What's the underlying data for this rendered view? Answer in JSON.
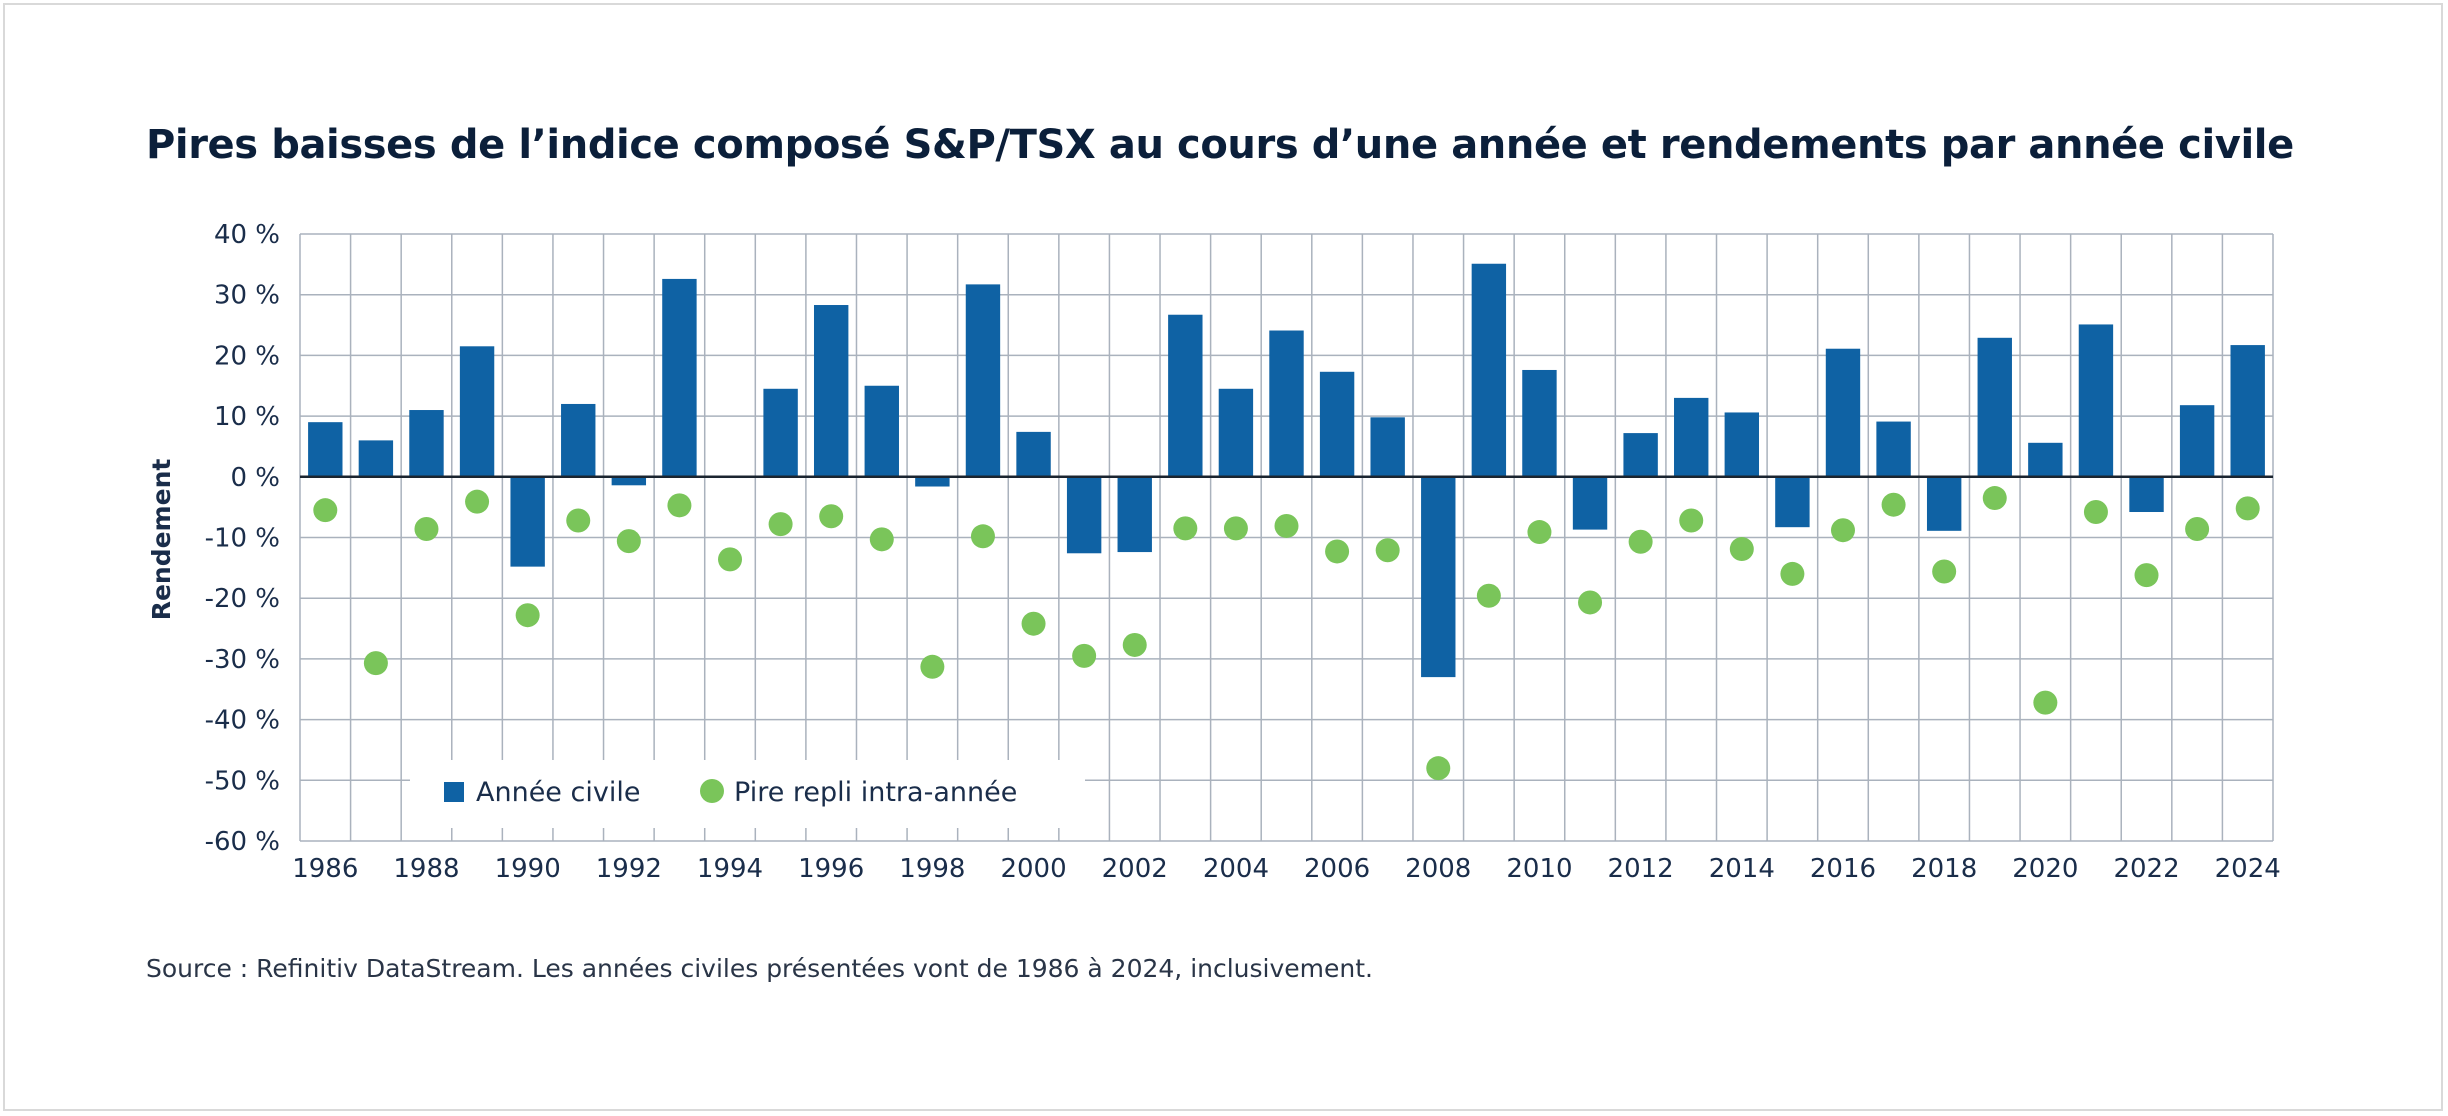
{
  "title": "Pires baisses de l’indice composé S&P/TSX au cours d’une année et rendements par année civile",
  "source": "Source : Refinitiv DataStream. Les années civiles présentées vont de 1986 à 2024, inclusivement.",
  "colors": {
    "bar": "#0f62a4",
    "dot": "#7ac55a",
    "grid": "#aab2bd",
    "text": "#1a2d4a"
  },
  "chart_data": {
    "type": "bar",
    "title": "Pires baisses de l’indice composé S&P/TSX au cours d’une année et rendements par année civile",
    "ylabel": "Rendement",
    "xlabel": "",
    "ylim": [
      -60,
      40
    ],
    "yticks": [
      40,
      30,
      20,
      10,
      0,
      -10,
      -20,
      -30,
      -40,
      -50,
      -60
    ],
    "ytick_labels": [
      "40 %",
      "30 %",
      "20 %",
      "10 %",
      "0 %",
      "-10 %",
      "-20 %",
      "-30 %",
      "-40 %",
      "-50 %",
      "-60 %"
    ],
    "xtick_labels": [
      "1986",
      "1988",
      "1990",
      "1992",
      "1994",
      "1996",
      "1998",
      "2000",
      "2002",
      "2004",
      "2006",
      "2008",
      "2010",
      "2012",
      "2014",
      "2016",
      "2018",
      "2020",
      "2022",
      "2024"
    ],
    "grid": true,
    "legend_position": "bottom-left",
    "categories": [
      "1986",
      "1987",
      "1988",
      "1989",
      "1990",
      "1991",
      "1992",
      "1993",
      "1994",
      "1995",
      "1996",
      "1997",
      "1998",
      "1999",
      "2000",
      "2001",
      "2002",
      "2003",
      "2004",
      "2005",
      "2006",
      "2007",
      "2008",
      "2009",
      "2010",
      "2011",
      "2012",
      "2013",
      "2014",
      "2015",
      "2016",
      "2017",
      "2018",
      "2019",
      "2020",
      "2021",
      "2022",
      "2023",
      "2024"
    ],
    "series": [
      {
        "name": "Année civile",
        "type": "bar",
        "values": [
          9,
          6,
          11,
          21.5,
          -14.8,
          12,
          -1.4,
          32.6,
          -0.2,
          14.5,
          28.3,
          15,
          -1.6,
          31.7,
          7.4,
          -12.6,
          -12.4,
          26.7,
          14.5,
          24.1,
          17.3,
          9.8,
          -33,
          35.1,
          17.6,
          -8.7,
          7.2,
          13,
          10.6,
          -8.3,
          21.1,
          9.1,
          -8.9,
          22.9,
          5.6,
          25.1,
          -5.8,
          11.8,
          21.7
        ]
      },
      {
        "name": "Pire repli intra-année",
        "type": "scatter",
        "values": [
          -5.5,
          -30.7,
          -8.6,
          -4.1,
          -22.8,
          -7.2,
          -10.6,
          -4.7,
          -13.6,
          -7.8,
          -6.5,
          -10.3,
          -31.3,
          -9.8,
          -24.2,
          -29.5,
          -27.7,
          -8.5,
          -8.5,
          -8.1,
          -12.3,
          -12.1,
          -48,
          -19.6,
          -9.1,
          -20.7,
          -10.7,
          -7.2,
          -11.9,
          -16,
          -8.8,
          -4.6,
          -15.6,
          -3.5,
          -37.2,
          -5.8,
          -16.2,
          -8.6,
          -5.2
        ]
      }
    ]
  }
}
